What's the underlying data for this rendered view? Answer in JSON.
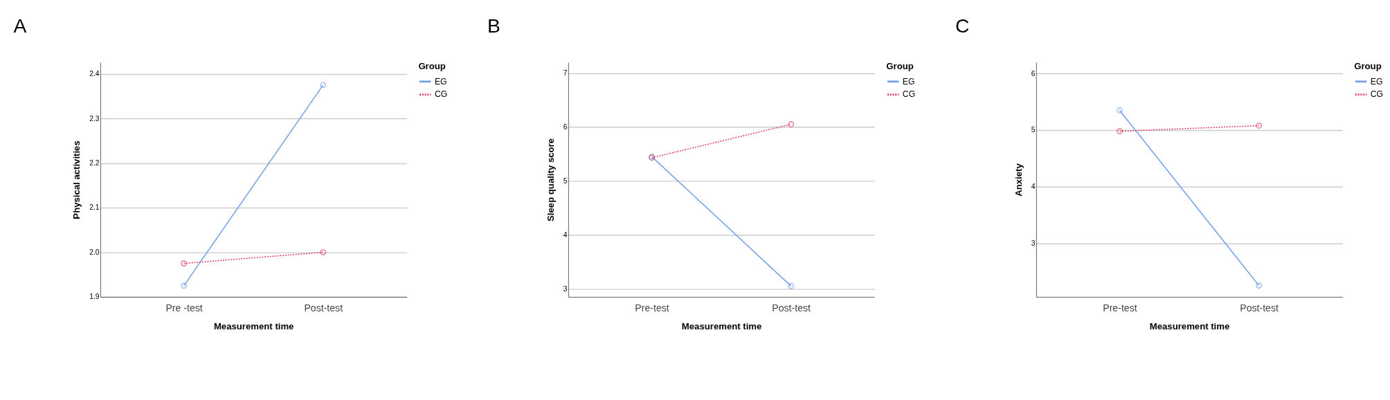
{
  "chart_data": [
    {
      "type": "line",
      "title": "A",
      "xlabel": "Measurement time",
      "ylabel": "Physical activities",
      "legend_title": "Group",
      "legend": "top right",
      "grid": "y",
      "marker": "circle",
      "categories": [
        "Pre -test",
        "Post-test"
      ],
      "ylim": [
        1.9,
        2.426
      ],
      "yticks": [
        1.9,
        {
          "value": 2,
          "label": "2.0"
        },
        2.1,
        2.2,
        2.3,
        2.4
      ],
      "series": [
        {
          "name": "EG",
          "color": "#6fa0e8",
          "line_style": "solid",
          "values": [
            1.925,
            2.375
          ]
        },
        {
          "name": "CG",
          "color": "#e0355a",
          "line_style": "dotted",
          "values": [
            1.975,
            2.0
          ]
        }
      ]
    },
    {
      "type": "line",
      "title": "B",
      "xlabel": "Measurement time",
      "ylabel": "Sleep quality score",
      "legend_title": "Group",
      "legend": "top right",
      "grid": "y",
      "marker": "circle",
      "categories": [
        "Pre-test",
        "Post-test"
      ],
      "ylim": [
        2.85,
        7.2
      ],
      "yticks": [
        3,
        4,
        5,
        6,
        7
      ],
      "series": [
        {
          "name": "EG",
          "color": "#6fa0e8",
          "line_style": "solid",
          "values": [
            5.45,
            3.05
          ]
        },
        {
          "name": "CG",
          "color": "#e0355a",
          "line_style": "dotted",
          "values": [
            5.43,
            6.05
          ]
        }
      ]
    },
    {
      "type": "line",
      "title": "C",
      "xlabel": "Measurement time",
      "ylabel": "Anxiety",
      "legend_title": "Group",
      "legend": "top right",
      "grid": "y",
      "marker": "circle",
      "categories": [
        "Pre-test",
        "Post-test"
      ],
      "ylim": [
        2.05,
        6.2
      ],
      "yticks": [
        3,
        4,
        5,
        6
      ],
      "series": [
        {
          "name": "EG",
          "color": "#6fa0e8",
          "line_style": "solid",
          "values": [
            5.35,
            2.25
          ]
        },
        {
          "name": "CG",
          "color": "#e0355a",
          "line_style": "dotted",
          "values": [
            4.98,
            5.08
          ]
        }
      ]
    }
  ]
}
